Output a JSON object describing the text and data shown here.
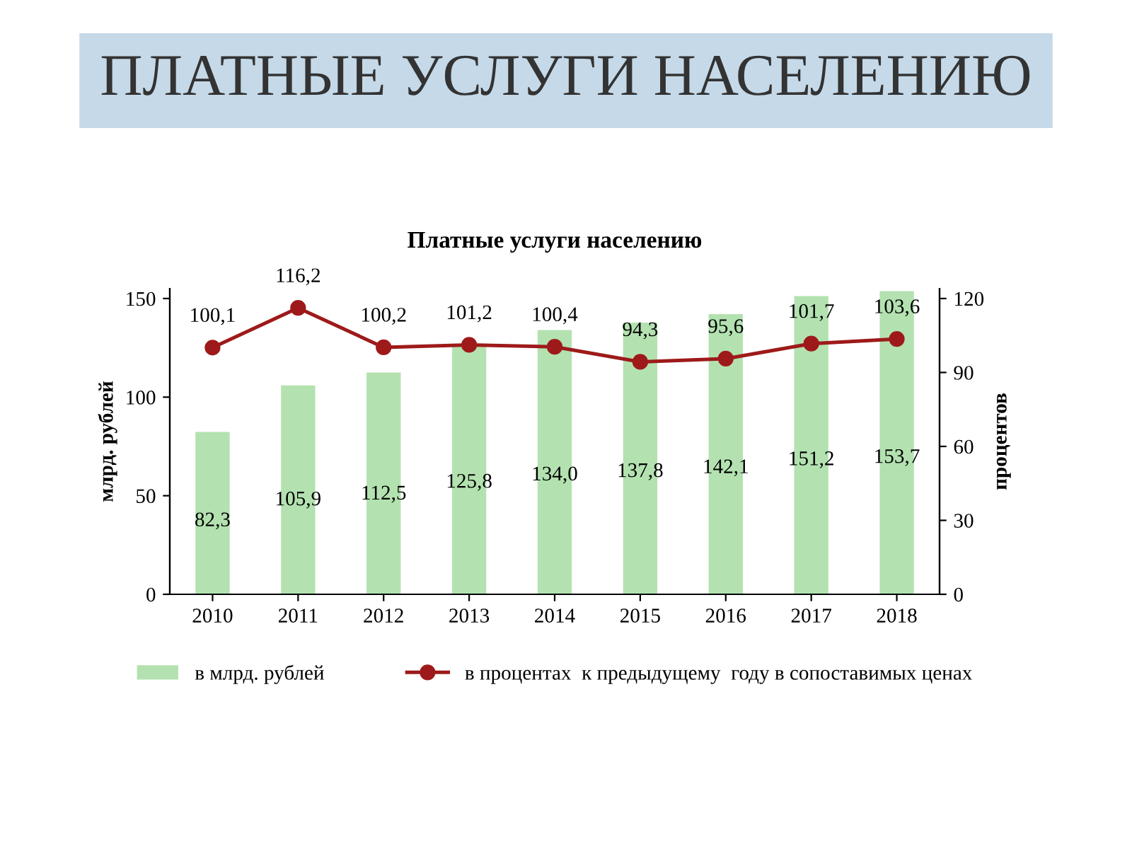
{
  "chart_data": {
    "type": "bar",
    "title": "ПЛАТНЫЕ УСЛУГИ НАСЕЛЕНИЮ",
    "subtitle": "Платные услуги населению",
    "ylabel": "млрд. рублей",
    "y2label": "процентов",
    "categories": [
      "2010",
      "2011",
      "2012",
      "2013",
      "2014",
      "2015",
      "2016",
      "2017",
      "2018"
    ],
    "series": [
      {
        "name": "в млрд. рублей",
        "color": "#b3e2b0",
        "values": [
          82.3,
          105.9,
          112.5,
          125.8,
          134.0,
          137.8,
          142.1,
          151.2,
          153.7
        ],
        "value_labels": [
          "82,3",
          "105,9",
          "112,5",
          "125,8",
          "134,0",
          "137,8",
          "142,1",
          "151,2",
          "153,7"
        ]
      },
      {
        "name": "в процентах  к предыдущему  году в сопоставимых ценах",
        "type": "line",
        "axis": "y2",
        "color": "#9e1a1a",
        "marker": "circle",
        "values": [
          100.1,
          116.2,
          100.2,
          101.2,
          100.4,
          94.3,
          95.6,
          101.7,
          103.6
        ],
        "value_labels": [
          "100,1",
          "116,2",
          "100,2",
          "101,2",
          "100,4",
          "94,3",
          "95,6",
          "101,7",
          "103,6"
        ]
      }
    ],
    "ylim": [
      0,
      155
    ],
    "yticks": [
      0,
      50,
      100,
      150
    ],
    "y2lim": [
      0,
      124
    ],
    "y2ticks": [
      0,
      30,
      60,
      90,
      120
    ],
    "grid": false,
    "legend": "bottom"
  }
}
